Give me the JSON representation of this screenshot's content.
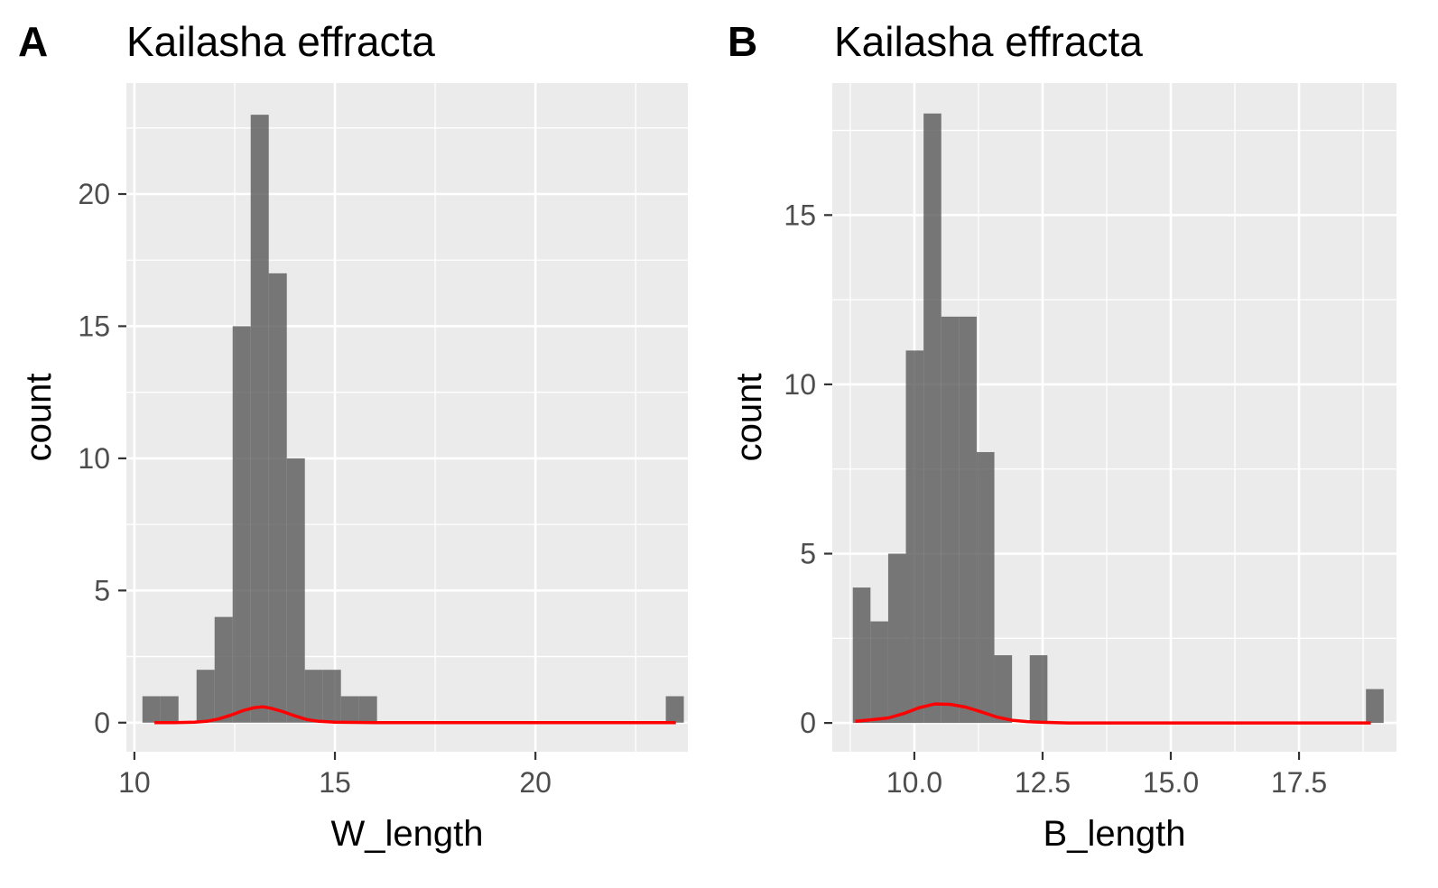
{
  "colors": {
    "panel_background": "#ebebeb",
    "grid_major": "#ffffff",
    "bar_fill": "#595959",
    "density_line": "#ff0000",
    "tick_text": "#4d4d4d",
    "tick_mark": "#333333"
  },
  "chart_data": [
    {
      "type": "bar",
      "panel_tag": "A",
      "title": "Kailasha effracta",
      "xlabel": "W_length",
      "ylabel": "count",
      "xlim": [
        9.8,
        23.8
      ],
      "ylim": [
        -1.1,
        24.2
      ],
      "x_ticks": [
        10,
        15,
        20
      ],
      "x_tick_labels": [
        "10",
        "15",
        "20"
      ],
      "y_ticks": [
        0,
        5,
        10,
        15,
        20
      ],
      "y_tick_labels": [
        "0",
        "5",
        "10",
        "15",
        "20"
      ],
      "grid": true,
      "bin_edges": [
        10.2,
        10.65,
        11.1,
        11.55,
        12.0,
        12.45,
        12.9,
        13.35,
        13.8,
        14.25,
        14.7,
        15.15,
        15.6,
        16.05,
        16.5,
        16.95,
        17.4,
        17.85,
        18.3,
        18.75,
        19.2,
        19.65,
        20.1,
        20.55,
        21.0,
        21.45,
        21.9,
        22.35,
        22.8,
        23.25,
        23.7
      ],
      "counts": [
        1,
        1,
        0,
        2,
        4,
        15,
        23,
        17,
        10,
        2,
        2,
        1,
        1,
        0,
        0,
        0,
        0,
        0,
        0,
        0,
        0,
        0,
        0,
        0,
        0,
        0,
        0,
        0,
        0,
        1
      ],
      "density": {
        "x": [
          10.5,
          11.0,
          11.5,
          11.8,
          12.1,
          12.4,
          12.7,
          13.0,
          13.2,
          13.4,
          13.7,
          14.0,
          14.3,
          14.6,
          15.0,
          15.5,
          16.0,
          17.0,
          18.0,
          19.0,
          20.0,
          21.0,
          22.0,
          23.0,
          23.5
        ],
        "y": [
          0.0,
          0.0,
          0.02,
          0.05,
          0.14,
          0.28,
          0.45,
          0.57,
          0.6,
          0.55,
          0.42,
          0.26,
          0.12,
          0.05,
          0.02,
          0.01,
          0.0,
          0.0,
          0.0,
          0.0,
          0.0,
          0.0,
          0.0,
          0.0,
          0.0
        ]
      }
    },
    {
      "type": "bar",
      "panel_tag": "B",
      "title": "Kailasha effracta",
      "xlabel": "B_length",
      "ylabel": "count",
      "xlim": [
        8.4,
        19.4
      ],
      "ylim": [
        -0.85,
        18.9
      ],
      "x_ticks": [
        10.0,
        12.5,
        15.0,
        17.5
      ],
      "x_tick_labels": [
        "10.0",
        "12.5",
        "15.0",
        "17.5"
      ],
      "y_ticks": [
        0,
        5,
        10,
        15
      ],
      "y_tick_labels": [
        "0",
        "5",
        "10",
        "15"
      ],
      "grid": true,
      "bin_edges": [
        8.8,
        9.145,
        9.49,
        9.835,
        10.18,
        10.525,
        10.87,
        11.215,
        11.56,
        11.905,
        12.25,
        12.595,
        12.94,
        13.285,
        13.63,
        13.975,
        14.32,
        14.665,
        15.01,
        15.355,
        15.7,
        16.045,
        16.39,
        16.735,
        17.08,
        17.425,
        17.77,
        18.115,
        18.46,
        18.805,
        19.15
      ],
      "counts": [
        4,
        3,
        5,
        11,
        18,
        12,
        12,
        8,
        2,
        0,
        2,
        0,
        0,
        0,
        0,
        0,
        0,
        0,
        0,
        0,
        0,
        0,
        0,
        0,
        0,
        0,
        0,
        0,
        0,
        1
      ],
      "density": {
        "x": [
          8.85,
          9.2,
          9.5,
          9.8,
          10.1,
          10.4,
          10.7,
          11.0,
          11.3,
          11.6,
          11.9,
          12.2,
          12.5,
          13.0,
          14.0,
          15.0,
          16.0,
          17.0,
          18.0,
          18.5,
          18.9
        ],
        "y": [
          0.05,
          0.1,
          0.15,
          0.28,
          0.45,
          0.56,
          0.55,
          0.47,
          0.33,
          0.18,
          0.08,
          0.04,
          0.02,
          0.0,
          0.0,
          0.0,
          0.0,
          0.0,
          0.0,
          0.0,
          0.0
        ]
      }
    }
  ]
}
